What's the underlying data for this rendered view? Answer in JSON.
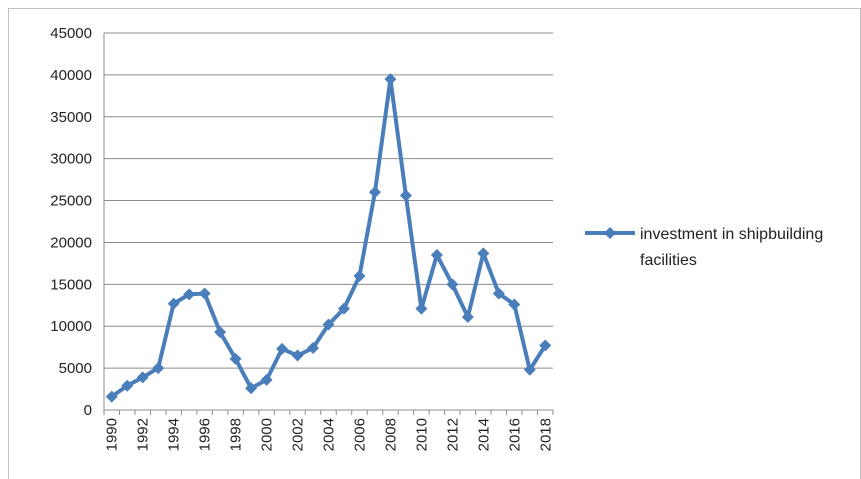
{
  "chart_data": {
    "type": "line",
    "categories": [
      "1990",
      null,
      "1992",
      null,
      "1994",
      null,
      "1996",
      null,
      "1998",
      null,
      "2000",
      null,
      "2002",
      null,
      "2004",
      null,
      "2006",
      null,
      "2008",
      null,
      "2010",
      null,
      "2012",
      null,
      "2014",
      null,
      "2016",
      null,
      "2018"
    ],
    "series": [
      {
        "name": "investment in shipbuilding facilities",
        "color": "#4a7ebb",
        "values": [
          1600,
          2900,
          3900,
          5000,
          12700,
          13800,
          13900,
          9300,
          6100,
          2600,
          3600,
          7300,
          6500,
          7400,
          10200,
          12100,
          16000,
          26000,
          39500,
          25600,
          12100,
          18500,
          15000,
          11100,
          18700,
          13900,
          12600,
          4800,
          7700
        ]
      }
    ],
    "ylim": [
      0,
      45000
    ],
    "yticks": [
      0,
      5000,
      10000,
      15000,
      20000,
      25000,
      30000,
      35000,
      40000,
      45000
    ],
    "grid": true,
    "legend": "right"
  }
}
